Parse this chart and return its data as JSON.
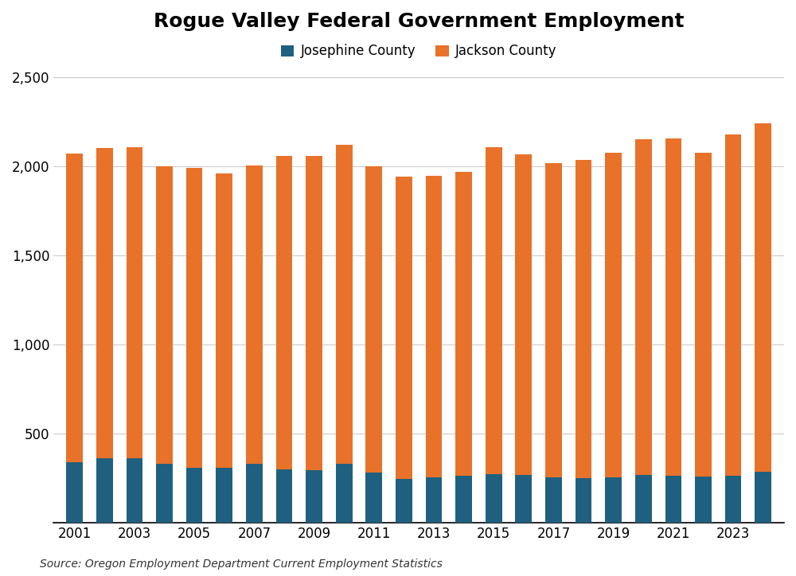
{
  "title": "Rogue Valley Federal Government Employment",
  "years": [
    2001,
    2002,
    2003,
    2004,
    2005,
    2006,
    2007,
    2008,
    2009,
    2010,
    2011,
    2012,
    2013,
    2014,
    2015,
    2016,
    2017,
    2018,
    2019,
    2020,
    2021,
    2022,
    2023,
    2024
  ],
  "josephine": [
    340,
    360,
    360,
    330,
    310,
    310,
    330,
    300,
    295,
    330,
    280,
    245,
    255,
    265,
    275,
    270,
    255,
    250,
    255,
    270,
    265,
    260,
    265,
    285
  ],
  "jackson": [
    1730,
    1740,
    1745,
    1670,
    1680,
    1650,
    1675,
    1755,
    1760,
    1790,
    1720,
    1695,
    1690,
    1700,
    1830,
    1795,
    1760,
    1785,
    1820,
    1880,
    1890,
    1815,
    1910,
    1955
  ],
  "josephine_color": "#1f6080",
  "jackson_color": "#e8722a",
  "josephine_label": "Josephine County",
  "jackson_label": "Jackson County",
  "ylim": [
    0,
    2500
  ],
  "yticks": [
    500,
    1000,
    1500,
    2000,
    2500
  ],
  "ytick_top": 2500,
  "source_text": "Source: Oregon Employment Department Current Employment Statistics",
  "background_color": "#ffffff",
  "grid_color": "#cccccc",
  "title_fontsize": 18,
  "label_fontsize": 12,
  "tick_fontsize": 12,
  "bar_width": 0.55
}
